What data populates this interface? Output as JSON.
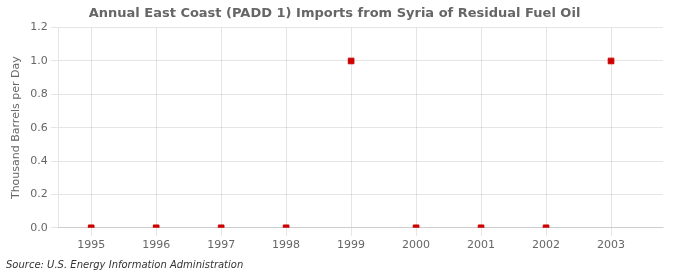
{
  "chart_data": {
    "type": "scatter",
    "title": "Annual East Coast (PADD 1) Imports from Syria of Residual Fuel Oil",
    "ylabel": "Thousand Barrels per Day",
    "source": "Source: U.S. Energy Information Administration",
    "x": [
      1995,
      1996,
      1997,
      1998,
      1999,
      2000,
      2001,
      2002,
      2003
    ],
    "values": [
      0,
      0,
      0,
      0,
      1.0,
      0,
      0,
      0,
      1.0
    ],
    "color": "#cc0000",
    "marker": "square",
    "xlim": [
      1994.5,
      2003.8
    ],
    "xticks": [
      1995,
      1996,
      1997,
      1998,
      1999,
      2000,
      2001,
      2002,
      2003
    ],
    "ylim": [
      0.0,
      1.2
    ],
    "yticks": [
      {
        "value": 0,
        "label": "0.0"
      },
      0.2,
      0.4,
      0.6,
      0.8,
      {
        "value": 1,
        "label": "1.0"
      },
      1.2
    ],
    "grid": true
  }
}
